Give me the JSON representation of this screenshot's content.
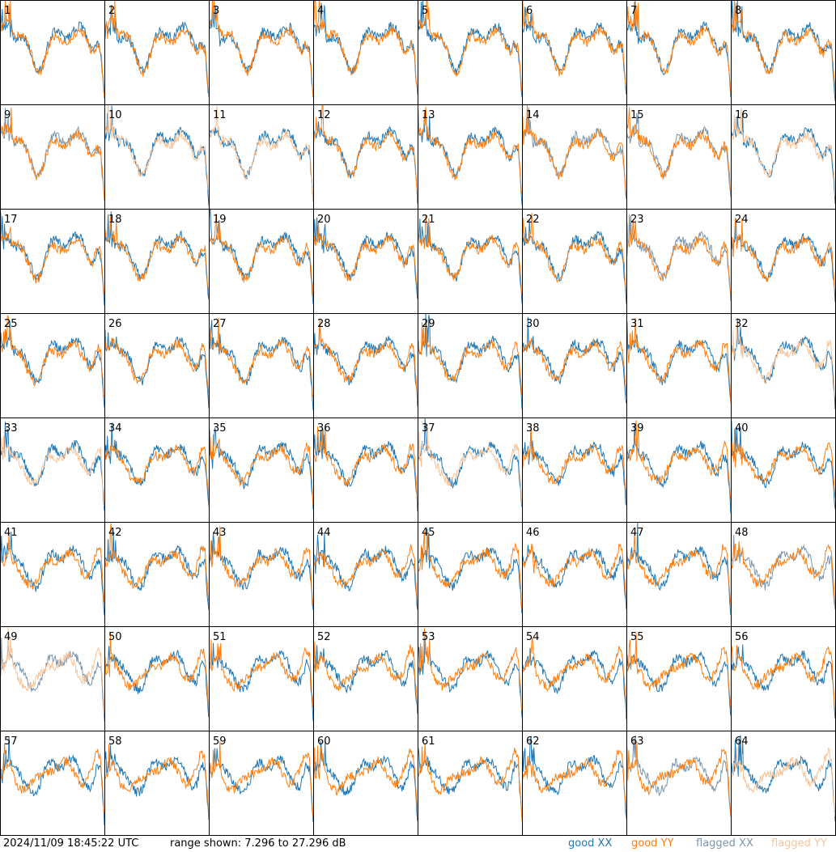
{
  "footer": {
    "timestamp": "2024/11/09 18:45:22 UTC",
    "range_text": "range shown: 7.296 to 27.296 dB"
  },
  "legend": {
    "good_xx": "good XX",
    "good_yy": "good YY",
    "flagged_xx": "flagged XX",
    "flagged_yy": "flagged YY"
  },
  "colors": {
    "good_xx": "#1f77b4",
    "good_yy": "#ff7f0e",
    "flagged_xx": "#7b95ac",
    "flagged_yy": "#f9c295",
    "frame": "#000000"
  },
  "chart_data": {
    "type": "line",
    "layout": "8x8 small multiples",
    "yunit": "dB",
    "ylim": [
      7.296,
      27.296
    ],
    "panels": [
      {
        "label": "1",
        "xx": "good",
        "yy": "good"
      },
      {
        "label": "2",
        "xx": "good",
        "yy": "good"
      },
      {
        "label": "3",
        "xx": "good",
        "yy": "good"
      },
      {
        "label": "4",
        "xx": "good",
        "yy": "good"
      },
      {
        "label": "5",
        "xx": "good",
        "yy": "good"
      },
      {
        "label": "6",
        "xx": "good",
        "yy": "good"
      },
      {
        "label": "7",
        "xx": "good",
        "yy": "good"
      },
      {
        "label": "8",
        "xx": "good",
        "yy": "good"
      },
      {
        "label": "9",
        "xx": "flagged",
        "yy": "good"
      },
      {
        "label": "10",
        "xx": "good",
        "yy": "flagged"
      },
      {
        "label": "11",
        "xx": "good",
        "yy": "flagged"
      },
      {
        "label": "12",
        "xx": "good",
        "yy": "good"
      },
      {
        "label": "13",
        "xx": "good",
        "yy": "good"
      },
      {
        "label": "14",
        "xx": "flagged",
        "yy": "good"
      },
      {
        "label": "15",
        "xx": "flagged",
        "yy": "good"
      },
      {
        "label": "16",
        "xx": "good",
        "yy": "flagged"
      },
      {
        "label": "17",
        "xx": "good",
        "yy": "good"
      },
      {
        "label": "18",
        "xx": "good",
        "yy": "good"
      },
      {
        "label": "19",
        "xx": "good",
        "yy": "good"
      },
      {
        "label": "20",
        "xx": "good",
        "yy": "good"
      },
      {
        "label": "21",
        "xx": "good",
        "yy": "good"
      },
      {
        "label": "22",
        "xx": "good",
        "yy": "good"
      },
      {
        "label": "23",
        "xx": "flagged",
        "yy": "good"
      },
      {
        "label": "24",
        "xx": "good",
        "yy": "good"
      },
      {
        "label": "25",
        "xx": "good",
        "yy": "good"
      },
      {
        "label": "26",
        "xx": "good",
        "yy": "good"
      },
      {
        "label": "27",
        "xx": "good",
        "yy": "good"
      },
      {
        "label": "28",
        "xx": "good",
        "yy": "good"
      },
      {
        "label": "29",
        "xx": "good",
        "yy": "good"
      },
      {
        "label": "30",
        "xx": "good",
        "yy": "good"
      },
      {
        "label": "31",
        "xx": "good",
        "yy": "good"
      },
      {
        "label": "32",
        "xx": "good",
        "yy": "flagged"
      },
      {
        "label": "33",
        "xx": "good",
        "yy": "flagged"
      },
      {
        "label": "34",
        "xx": "good",
        "yy": "good"
      },
      {
        "label": "35",
        "xx": "good",
        "yy": "good"
      },
      {
        "label": "36",
        "xx": "good",
        "yy": "good"
      },
      {
        "label": "37",
        "xx": "good",
        "yy": "flagged"
      },
      {
        "label": "38",
        "xx": "good",
        "yy": "good"
      },
      {
        "label": "39",
        "xx": "good",
        "yy": "good"
      },
      {
        "label": "40",
        "xx": "good",
        "yy": "good"
      },
      {
        "label": "41",
        "xx": "good",
        "yy": "good"
      },
      {
        "label": "42",
        "xx": "good",
        "yy": "good"
      },
      {
        "label": "43",
        "xx": "good",
        "yy": "good"
      },
      {
        "label": "44",
        "xx": "good",
        "yy": "good"
      },
      {
        "label": "45",
        "xx": "good",
        "yy": "good"
      },
      {
        "label": "46",
        "xx": "good",
        "yy": "good"
      },
      {
        "label": "47",
        "xx": "good",
        "yy": "good"
      },
      {
        "label": "48",
        "xx": "flagged",
        "yy": "good"
      },
      {
        "label": "49",
        "xx": "flagged",
        "yy": "flagged"
      },
      {
        "label": "50",
        "xx": "good",
        "yy": "good"
      },
      {
        "label": "51",
        "xx": "good",
        "yy": "good"
      },
      {
        "label": "52",
        "xx": "good",
        "yy": "good"
      },
      {
        "label": "53",
        "xx": "good",
        "yy": "good"
      },
      {
        "label": "54",
        "xx": "good",
        "yy": "good"
      },
      {
        "label": "55",
        "xx": "good",
        "yy": "good"
      },
      {
        "label": "56",
        "xx": "good",
        "yy": "good"
      },
      {
        "label": "57",
        "xx": "good",
        "yy": "good"
      },
      {
        "label": "58",
        "xx": "good",
        "yy": "good"
      },
      {
        "label": "59",
        "xx": "good",
        "yy": "good"
      },
      {
        "label": "60",
        "xx": "good",
        "yy": "good"
      },
      {
        "label": "61",
        "xx": "good",
        "yy": "good"
      },
      {
        "label": "62",
        "xx": "good",
        "yy": "good"
      },
      {
        "label": "63",
        "xx": "flagged",
        "yy": "good"
      },
      {
        "label": "64",
        "xx": "good",
        "yy": "flagged"
      }
    ]
  }
}
